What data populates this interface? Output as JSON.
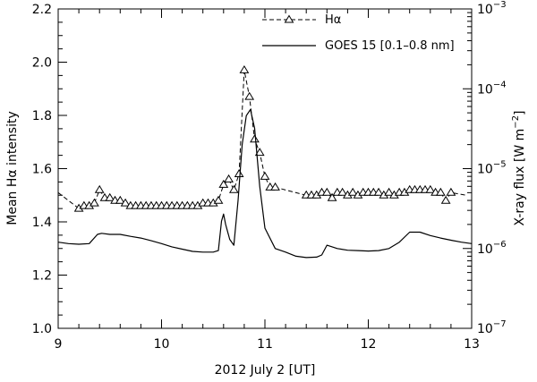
{
  "chart_data": {
    "type": "line",
    "xlabel": "2012 July 2 [UT]",
    "ylabel_left": "Mean Hα intensity",
    "ylabel_right_main": "X-ray flux [W m",
    "ylabel_right_sup": "−2",
    "ylabel_right_close": "]",
    "xlim": [
      9,
      13
    ],
    "ylim_left": [
      1.0,
      2.2
    ],
    "ylim_right": [
      1e-07,
      0.001
    ],
    "right_axis_scale": "log",
    "x_ticks": [
      9,
      10,
      11,
      12,
      13
    ],
    "x_tick_labels": [
      "9",
      "10",
      "11",
      "12",
      "13"
    ],
    "y_left_ticks": [
      1.0,
      1.2,
      1.4,
      1.6,
      1.8,
      2.0,
      2.2
    ],
    "y_left_tick_labels": [
      "1.0",
      "1.2",
      "1.4",
      "1.6",
      "1.8",
      "2.0",
      "2.2"
    ],
    "y_right_tick_base": "10",
    "y_right_ticks": [
      1e-07,
      1e-06,
      1e-05,
      0.0001,
      0.001
    ],
    "y_right_tick_exponents": [
      "−7",
      "−6",
      "−5",
      "−4",
      "−3"
    ],
    "legend_position": "top-center",
    "grid": false,
    "series": [
      {
        "name": "Hα",
        "axis": "left",
        "style": "dashed-triangles",
        "x": [
          9.0,
          9.2,
          9.25,
          9.3,
          9.35,
          9.4,
          9.45,
          9.5,
          9.55,
          9.6,
          9.65,
          9.7,
          9.75,
          9.8,
          9.85,
          9.9,
          9.95,
          10.0,
          10.05,
          10.1,
          10.15,
          10.2,
          10.25,
          10.3,
          10.35,
          10.4,
          10.45,
          10.5,
          10.55,
          10.6,
          10.65,
          10.7,
          10.75,
          10.8,
          10.85,
          10.9,
          10.95,
          11.0,
          11.05,
          11.1,
          11.4,
          11.45,
          11.5,
          11.55,
          11.6,
          11.65,
          11.7,
          11.75,
          11.8,
          11.85,
          11.9,
          11.95,
          12.0,
          12.05,
          12.1,
          12.15,
          12.2,
          12.25,
          12.3,
          12.35,
          12.4,
          12.45,
          12.5,
          12.55,
          12.6,
          12.65,
          12.7,
          12.75,
          12.8,
          12.95
        ],
        "y": [
          1.51,
          1.45,
          1.46,
          1.46,
          1.47,
          1.52,
          1.49,
          1.49,
          1.48,
          1.48,
          1.47,
          1.46,
          1.46,
          1.46,
          1.46,
          1.46,
          1.46,
          1.46,
          1.46,
          1.46,
          1.46,
          1.46,
          1.46,
          1.46,
          1.46,
          1.47,
          1.47,
          1.47,
          1.48,
          1.54,
          1.56,
          1.52,
          1.58,
          1.97,
          1.87,
          1.71,
          1.66,
          1.57,
          1.53,
          1.53,
          1.5,
          1.5,
          1.5,
          1.51,
          1.51,
          1.49,
          1.51,
          1.51,
          1.5,
          1.51,
          1.5,
          1.51,
          1.51,
          1.51,
          1.51,
          1.5,
          1.51,
          1.5,
          1.51,
          1.51,
          1.52,
          1.52,
          1.52,
          1.52,
          1.52,
          1.51,
          1.51,
          1.48,
          1.51,
          1.5
        ]
      },
      {
        "name": "GOES 15 [0.1–0.8 nm]",
        "axis": "right",
        "style": "solid",
        "x": [
          9.0,
          9.1,
          9.2,
          9.3,
          9.38,
          9.42,
          9.5,
          9.6,
          9.7,
          9.8,
          9.9,
          10.0,
          10.1,
          10.2,
          10.3,
          10.4,
          10.5,
          10.55,
          10.58,
          10.6,
          10.62,
          10.66,
          10.7,
          10.74,
          10.78,
          10.82,
          10.86,
          10.9,
          10.95,
          11.0,
          11.1,
          11.2,
          11.3,
          11.4,
          11.5,
          11.55,
          11.6,
          11.65,
          11.7,
          11.8,
          11.9,
          12.0,
          12.1,
          12.2,
          12.3,
          12.4,
          12.5,
          12.6,
          12.7,
          12.8,
          12.9,
          13.0
        ],
        "y": [
          1.2e-06,
          1.15e-06,
          1.13e-06,
          1.15e-06,
          1.5e-06,
          1.55e-06,
          1.5e-06,
          1.5e-06,
          1.42e-06,
          1.35e-06,
          1.25e-06,
          1.15e-06,
          1.05e-06,
          9.8e-07,
          9.2e-07,
          9e-07,
          9e-07,
          9.4e-07,
          2.2e-06,
          2.7e-06,
          2e-06,
          1.3e-06,
          1.1e-06,
          4e-06,
          2e-05,
          4.6e-05,
          5.5e-05,
          3.2e-05,
          6e-06,
          1.8e-06,
          1e-06,
          9e-07,
          8e-07,
          7.7e-07,
          7.8e-07,
          8.3e-07,
          1.1e-06,
          1.05e-06,
          1e-06,
          9.5e-07,
          9.4e-07,
          9.3e-07,
          9.4e-07,
          1e-06,
          1.2e-06,
          1.6e-06,
          1.6e-06,
          1.45e-06,
          1.35e-06,
          1.27e-06,
          1.2e-06,
          1.15e-06
        ]
      }
    ]
  }
}
